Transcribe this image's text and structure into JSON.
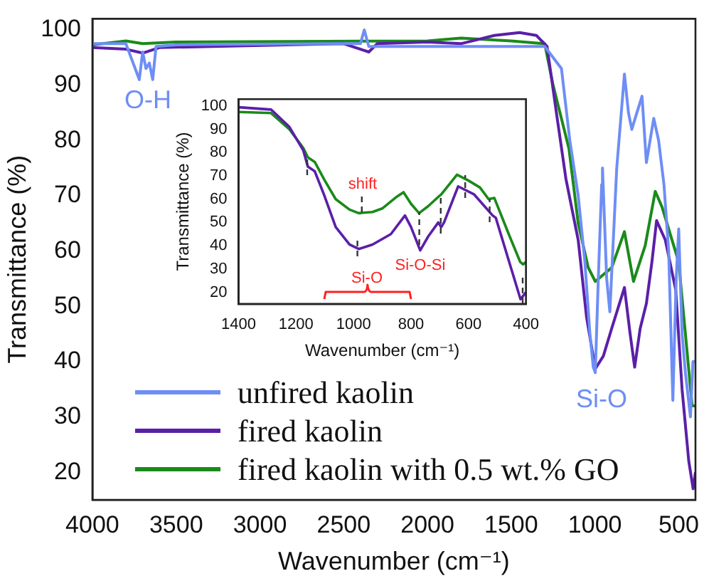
{
  "chart_data": [
    {
      "type": "line",
      "xlabel": "Wavenumber (cm⁻¹)",
      "ylabel": "Transmittance (%)",
      "xlim": [
        4000,
        400
      ],
      "ylim": [
        15,
        102
      ],
      "xticks": [
        4000,
        3500,
        3000,
        2500,
        2000,
        1500,
        1000,
        500
      ],
      "yticks": [
        20,
        30,
        40,
        50,
        60,
        70,
        80,
        90,
        100
      ],
      "grid": false,
      "legend": "bottom left",
      "line_style": "solid",
      "marker": "none",
      "annotations": [
        "O-H",
        "Si-O"
      ],
      "series": [
        {
          "name": "unfired kaolin",
          "color": "#6e8ef5",
          "x": [
            4000,
            3800,
            3720,
            3700,
            3680,
            3660,
            3640,
            3620,
            3500,
            2500,
            2400,
            2377,
            2350,
            2000,
            1500,
            1300,
            1200,
            1150,
            1100,
            1060,
            1030,
            1010,
            998,
            980,
            960,
            955,
            930,
            911,
            870,
            824,
            800,
            780,
            760,
            719,
            693,
            660,
            649,
            620,
            588,
            560,
            535,
            515,
            500,
            480,
            460,
            430,
            415,
            400
          ],
          "values": [
            97.5,
            97.5,
            91,
            96,
            93,
            94,
            91,
            97,
            97.3,
            97.5,
            97.5,
            100,
            97,
            97,
            97,
            97,
            93,
            80,
            70,
            58,
            45,
            39,
            38,
            55,
            72,
            75,
            55,
            49,
            75,
            92,
            85,
            82,
            84,
            88,
            76,
            82,
            84,
            80,
            72,
            60,
            33,
            55,
            64,
            45,
            38,
            30,
            40,
            40
          ]
        },
        {
          "name": "fired kaolin",
          "color": "#5b1fa8",
          "x": [
            4000,
            3800,
            3700,
            3600,
            2500,
            2350,
            2300,
            2000,
            1800,
            1600,
            1450,
            1350,
            1286,
            1230,
            1173,
            1100,
            1050,
            998,
            950,
            900,
            824,
            790,
            763,
            730,
            693,
            660,
            632,
            580,
            518,
            480,
            440,
            414,
            400
          ],
          "values": [
            96.8,
            96.5,
            95.8,
            96.8,
            97.5,
            96,
            97.5,
            97.8,
            97.5,
            99,
            99.5,
            99,
            97,
            85,
            73,
            62,
            48,
            38.7,
            41,
            46,
            53.4,
            45,
            39,
            46,
            50.5,
            58,
            65.5,
            62,
            53,
            35,
            22,
            17,
            20
          ]
        },
        {
          "name": "fired kaolin with 0.5 wt.% GO",
          "color": "#1a8a1a",
          "x": [
            4000,
            3800,
            3700,
            3500,
            2000,
            1800,
            1500,
            1300,
            1250,
            1155,
            1100,
            1040,
            998,
            900,
            824,
            770,
            700,
            640,
            600,
            520,
            500,
            460,
            420,
            400
          ],
          "values": [
            97.3,
            98,
            97.5,
            97.8,
            98,
            98.5,
            98,
            97.5,
            90,
            78.5,
            65,
            57,
            54.5,
            57,
            63.5,
            54.5,
            61,
            70.8,
            68,
            60,
            58,
            45,
            32,
            32
          ]
        }
      ]
    },
    {
      "type": "line",
      "xlabel": "Wavenumber (cm⁻¹)",
      "ylabel": "Transmittance (%)",
      "xlim": [
        1400,
        400
      ],
      "ylim": [
        15,
        103
      ],
      "xticks": [
        1400,
        1200,
        1000,
        800,
        600,
        400
      ],
      "yticks": [
        20,
        30,
        40,
        50,
        60,
        70,
        80,
        90,
        100
      ],
      "grid": false,
      "marker": "none",
      "annotations": [
        "shift",
        {
          "text": "Si-O-Si",
          "x": 768,
          "y": 38
        },
        "Si-O"
      ],
      "series": [
        {
          "color": "#5b1fa8",
          "line_style": "solid",
          "x": [
            1400,
            1287,
            1223,
            1175,
            1159,
            1135,
            1103,
            1062,
            1014,
            982,
            934,
            870,
            821,
            800,
            768,
            740,
            705,
            695,
            685,
            636,
            580,
            516,
            505,
            451,
            419,
            400
          ],
          "values": [
            99.5,
            98.5,
            91,
            81,
            74,
            72,
            62,
            48,
            40.5,
            38.6,
            40.5,
            45,
            53,
            48,
            38,
            44,
            50,
            48,
            50,
            65.5,
            62,
            53,
            52,
            30,
            17,
            20
          ]
        },
        {
          "color": "#1a8a1a",
          "line_style": "solid",
          "x": [
            1400,
            1287,
            1223,
            1175,
            1159,
            1135,
            1100,
            1062,
            1014,
            982,
            934,
            900,
            850,
            826,
            800,
            772,
            740,
            705,
            695,
            640,
            600,
            560,
            530,
            510,
            460,
            420,
            410,
            400
          ],
          "values": [
            97.5,
            97,
            90,
            82,
            78,
            76,
            68,
            60,
            55.5,
            54,
            54.5,
            56,
            61,
            63,
            58,
            54,
            57,
            61,
            62,
            70.5,
            68,
            65,
            60,
            60.5,
            45,
            33,
            32,
            33
          ]
        }
      ]
    }
  ]
}
